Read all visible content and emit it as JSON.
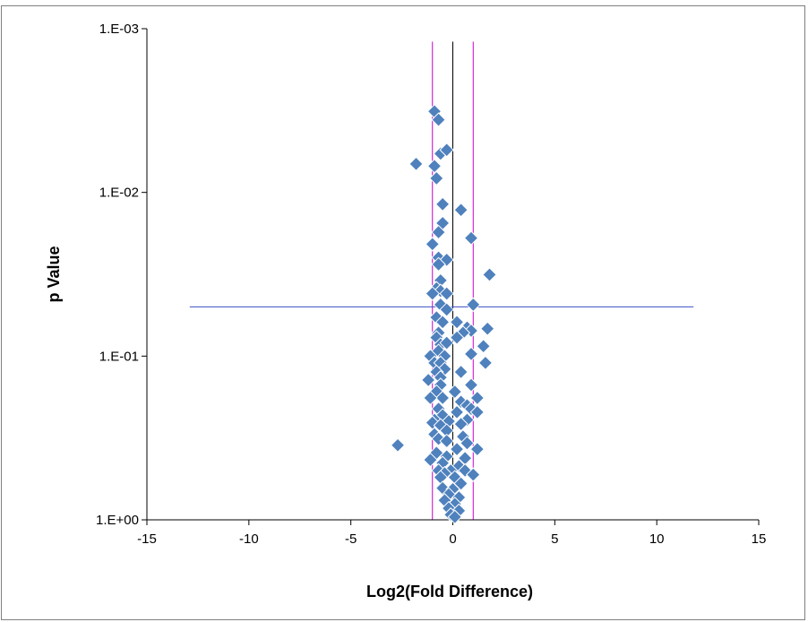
{
  "chart_data": {
    "type": "scatter",
    "title": "",
    "xlabel": "Log2(Fold Difference)",
    "ylabel": "p Value",
    "xlim": [
      -15,
      15
    ],
    "ylim": [
      1,
      0.001
    ],
    "y_scale": "log",
    "x_ticks": [
      -15,
      -10,
      -5,
      0,
      5,
      10,
      15
    ],
    "x_tick_labels": [
      "-15",
      "-10",
      "-5",
      "0",
      "5",
      "10",
      "15"
    ],
    "y_ticks": [
      0.001,
      0.01,
      0.1,
      1
    ],
    "y_tick_labels": [
      "1.E-03",
      "1.E-02",
      "1.E-01",
      "1.E+00"
    ],
    "grid": false,
    "legend": "none",
    "colors": {
      "marker": "#4f81bd",
      "marker_edge": "#ffffff",
      "threshold_vertical": "#cc00cc",
      "center_line": "#000000",
      "threshold_horizontal": "#3b4fc4",
      "axis": "#000000",
      "frame": "#7f7f7f"
    },
    "reference_lines": [
      {
        "orientation": "vertical",
        "x": -1,
        "y_range": [
          1,
          0.0012
        ]
      },
      {
        "orientation": "vertical",
        "x": 1,
        "y_range": [
          1,
          0.0012
        ]
      },
      {
        "orientation": "vertical",
        "x": 0,
        "y_range": [
          1,
          0.0012
        ]
      },
      {
        "orientation": "horizontal",
        "y": 0.05,
        "x_range": [
          -12.9,
          11.8
        ]
      }
    ],
    "series": [
      {
        "points": [
          {
            "x": -0.9,
            "y": 0.0032
          },
          {
            "x": -0.7,
            "y": 0.0036
          },
          {
            "x": -0.6,
            "y": 0.0058
          },
          {
            "x": -0.3,
            "y": 0.0055
          },
          {
            "x": -1.8,
            "y": 0.0067
          },
          {
            "x": -0.9,
            "y": 0.0069
          },
          {
            "x": -0.8,
            "y": 0.0082
          },
          {
            "x": -0.5,
            "y": 0.0118
          },
          {
            "x": 0.4,
            "y": 0.0128
          },
          {
            "x": -0.5,
            "y": 0.0154
          },
          {
            "x": -0.7,
            "y": 0.0175
          },
          {
            "x": 0.9,
            "y": 0.019
          },
          {
            "x": -1.0,
            "y": 0.0207
          },
          {
            "x": -0.7,
            "y": 0.025
          },
          {
            "x": -0.3,
            "y": 0.0258
          },
          {
            "x": -0.7,
            "y": 0.0275
          },
          {
            "x": 1.8,
            "y": 0.0318
          },
          {
            "x": -0.6,
            "y": 0.0345
          },
          {
            "x": -0.8,
            "y": 0.0385
          },
          {
            "x": -0.6,
            "y": 0.04
          },
          {
            "x": -1.0,
            "y": 0.0415
          },
          {
            "x": -0.3,
            "y": 0.0415
          },
          {
            "x": -0.6,
            "y": 0.0485
          },
          {
            "x": 1.0,
            "y": 0.0485
          },
          {
            "x": -0.3,
            "y": 0.052
          },
          {
            "x": -0.8,
            "y": 0.058
          },
          {
            "x": -0.5,
            "y": 0.062
          },
          {
            "x": 0.2,
            "y": 0.062
          },
          {
            "x": 0.7,
            "y": 0.067
          },
          {
            "x": 1.7,
            "y": 0.068
          },
          {
            "x": 0.9,
            "y": 0.07
          },
          {
            "x": -0.7,
            "y": 0.072
          },
          {
            "x": 0.5,
            "y": 0.072
          },
          {
            "x": -0.8,
            "y": 0.077
          },
          {
            "x": 0.2,
            "y": 0.077
          },
          {
            "x": -0.6,
            "y": 0.085
          },
          {
            "x": -0.3,
            "y": 0.083
          },
          {
            "x": 1.5,
            "y": 0.087
          },
          {
            "x": -0.7,
            "y": 0.093
          },
          {
            "x": -1.1,
            "y": 0.1
          },
          {
            "x": -0.4,
            "y": 0.1
          },
          {
            "x": 0.9,
            "y": 0.097
          },
          {
            "x": -0.9,
            "y": 0.11
          },
          {
            "x": -0.6,
            "y": 0.11
          },
          {
            "x": 1.6,
            "y": 0.11
          },
          {
            "x": -0.4,
            "y": 0.12
          },
          {
            "x": -0.8,
            "y": 0.125
          },
          {
            "x": 0.4,
            "y": 0.125
          },
          {
            "x": -0.6,
            "y": 0.135
          },
          {
            "x": -1.2,
            "y": 0.14
          },
          {
            "x": -0.6,
            "y": 0.15
          },
          {
            "x": 0.9,
            "y": 0.15
          },
          {
            "x": -0.8,
            "y": 0.165
          },
          {
            "x": 0.1,
            "y": 0.165
          },
          {
            "x": -0.5,
            "y": 0.18
          },
          {
            "x": 1.2,
            "y": 0.18
          },
          {
            "x": -1.1,
            "y": 0.18
          },
          {
            "x": 0.4,
            "y": 0.19
          },
          {
            "x": 0.7,
            "y": 0.2
          },
          {
            "x": -0.7,
            "y": 0.21
          },
          {
            "x": 0.9,
            "y": 0.21
          },
          {
            "x": 0.2,
            "y": 0.22
          },
          {
            "x": 1.2,
            "y": 0.22
          },
          {
            "x": -0.5,
            "y": 0.23
          },
          {
            "x": -0.9,
            "y": 0.245
          },
          {
            "x": 0.7,
            "y": 0.245
          },
          {
            "x": -0.2,
            "y": 0.25
          },
          {
            "x": -1.0,
            "y": 0.255
          },
          {
            "x": 0.4,
            "y": 0.26
          },
          {
            "x": -0.6,
            "y": 0.265
          },
          {
            "x": -0.3,
            "y": 0.285
          },
          {
            "x": -0.9,
            "y": 0.3
          },
          {
            "x": 0.5,
            "y": 0.31
          },
          {
            "x": -0.7,
            "y": 0.32
          },
          {
            "x": -0.3,
            "y": 0.33
          },
          {
            "x": 0.7,
            "y": 0.34
          },
          {
            "x": -2.7,
            "y": 0.35
          },
          {
            "x": 0.2,
            "y": 0.37
          },
          {
            "x": 1.2,
            "y": 0.37
          },
          {
            "x": -0.8,
            "y": 0.39
          },
          {
            "x": -0.3,
            "y": 0.41
          },
          {
            "x": 0.6,
            "y": 0.42
          },
          {
            "x": -1.1,
            "y": 0.43
          },
          {
            "x": -0.5,
            "y": 0.45
          },
          {
            "x": 0.3,
            "y": 0.47
          },
          {
            "x": -0.7,
            "y": 0.5
          },
          {
            "x": -0.1,
            "y": 0.5
          },
          {
            "x": 0.6,
            "y": 0.5
          },
          {
            "x": -0.4,
            "y": 0.52
          },
          {
            "x": 1.0,
            "y": 0.53
          },
          {
            "x": -0.6,
            "y": 0.55
          },
          {
            "x": 0.1,
            "y": 0.55
          },
          {
            "x": 0.4,
            "y": 0.6
          },
          {
            "x": -0.5,
            "y": 0.64
          },
          {
            "x": 0.0,
            "y": 0.65
          },
          {
            "x": -0.2,
            "y": 0.7
          },
          {
            "x": 0.3,
            "y": 0.73
          },
          {
            "x": -0.4,
            "y": 0.76
          },
          {
            "x": 0.1,
            "y": 0.8
          },
          {
            "x": -0.2,
            "y": 0.85
          },
          {
            "x": 0.3,
            "y": 0.88
          },
          {
            "x": -0.1,
            "y": 0.93
          },
          {
            "x": 0.1,
            "y": 0.96
          }
        ]
      }
    ]
  }
}
